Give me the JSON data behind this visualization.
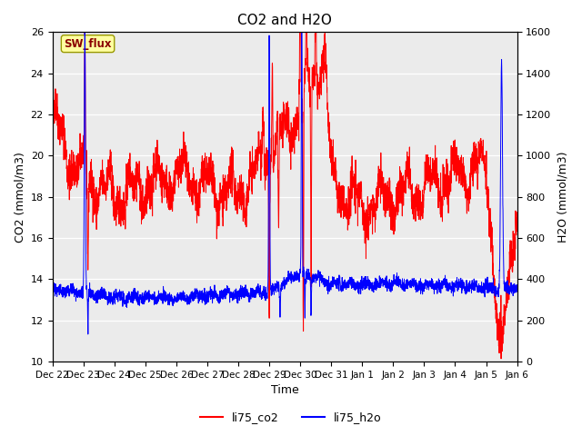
{
  "title": "CO2 and H2O",
  "xlabel": "Time",
  "ylabel_left": "CO2 (mmol/m3)",
  "ylabel_right": "H2O (mmol/m3)",
  "ylim_left": [
    10,
    26
  ],
  "ylim_right": [
    0,
    1600
  ],
  "yticks_left": [
    10,
    12,
    14,
    16,
    18,
    20,
    22,
    24,
    26
  ],
  "yticks_right": [
    0,
    200,
    400,
    600,
    800,
    1000,
    1200,
    1400,
    1600
  ],
  "color_co2": "#FF0000",
  "color_h2o": "#0000FF",
  "background_color": "#EBEBEB",
  "legend_label_co2": "li75_co2",
  "legend_label_h2o": "li75_h2o",
  "annotation_text": "SW_flux",
  "annotation_color": "#8B0000",
  "annotation_bg": "#FFFFA0",
  "num_points": 3000,
  "seed": 42,
  "tick_labels": [
    "Dec 22",
    "Dec 23",
    "Dec 24",
    "Dec 25",
    "Dec 26",
    "Dec 27",
    "Dec 28",
    "Dec 29",
    "Dec 30",
    "Dec 31",
    "Jan 1",
    "Jan 2",
    "Jan 3",
    "Jan 4",
    "Jan 5",
    "Jan 6"
  ],
  "figsize": [
    6.4,
    4.8
  ],
  "dpi": 100
}
